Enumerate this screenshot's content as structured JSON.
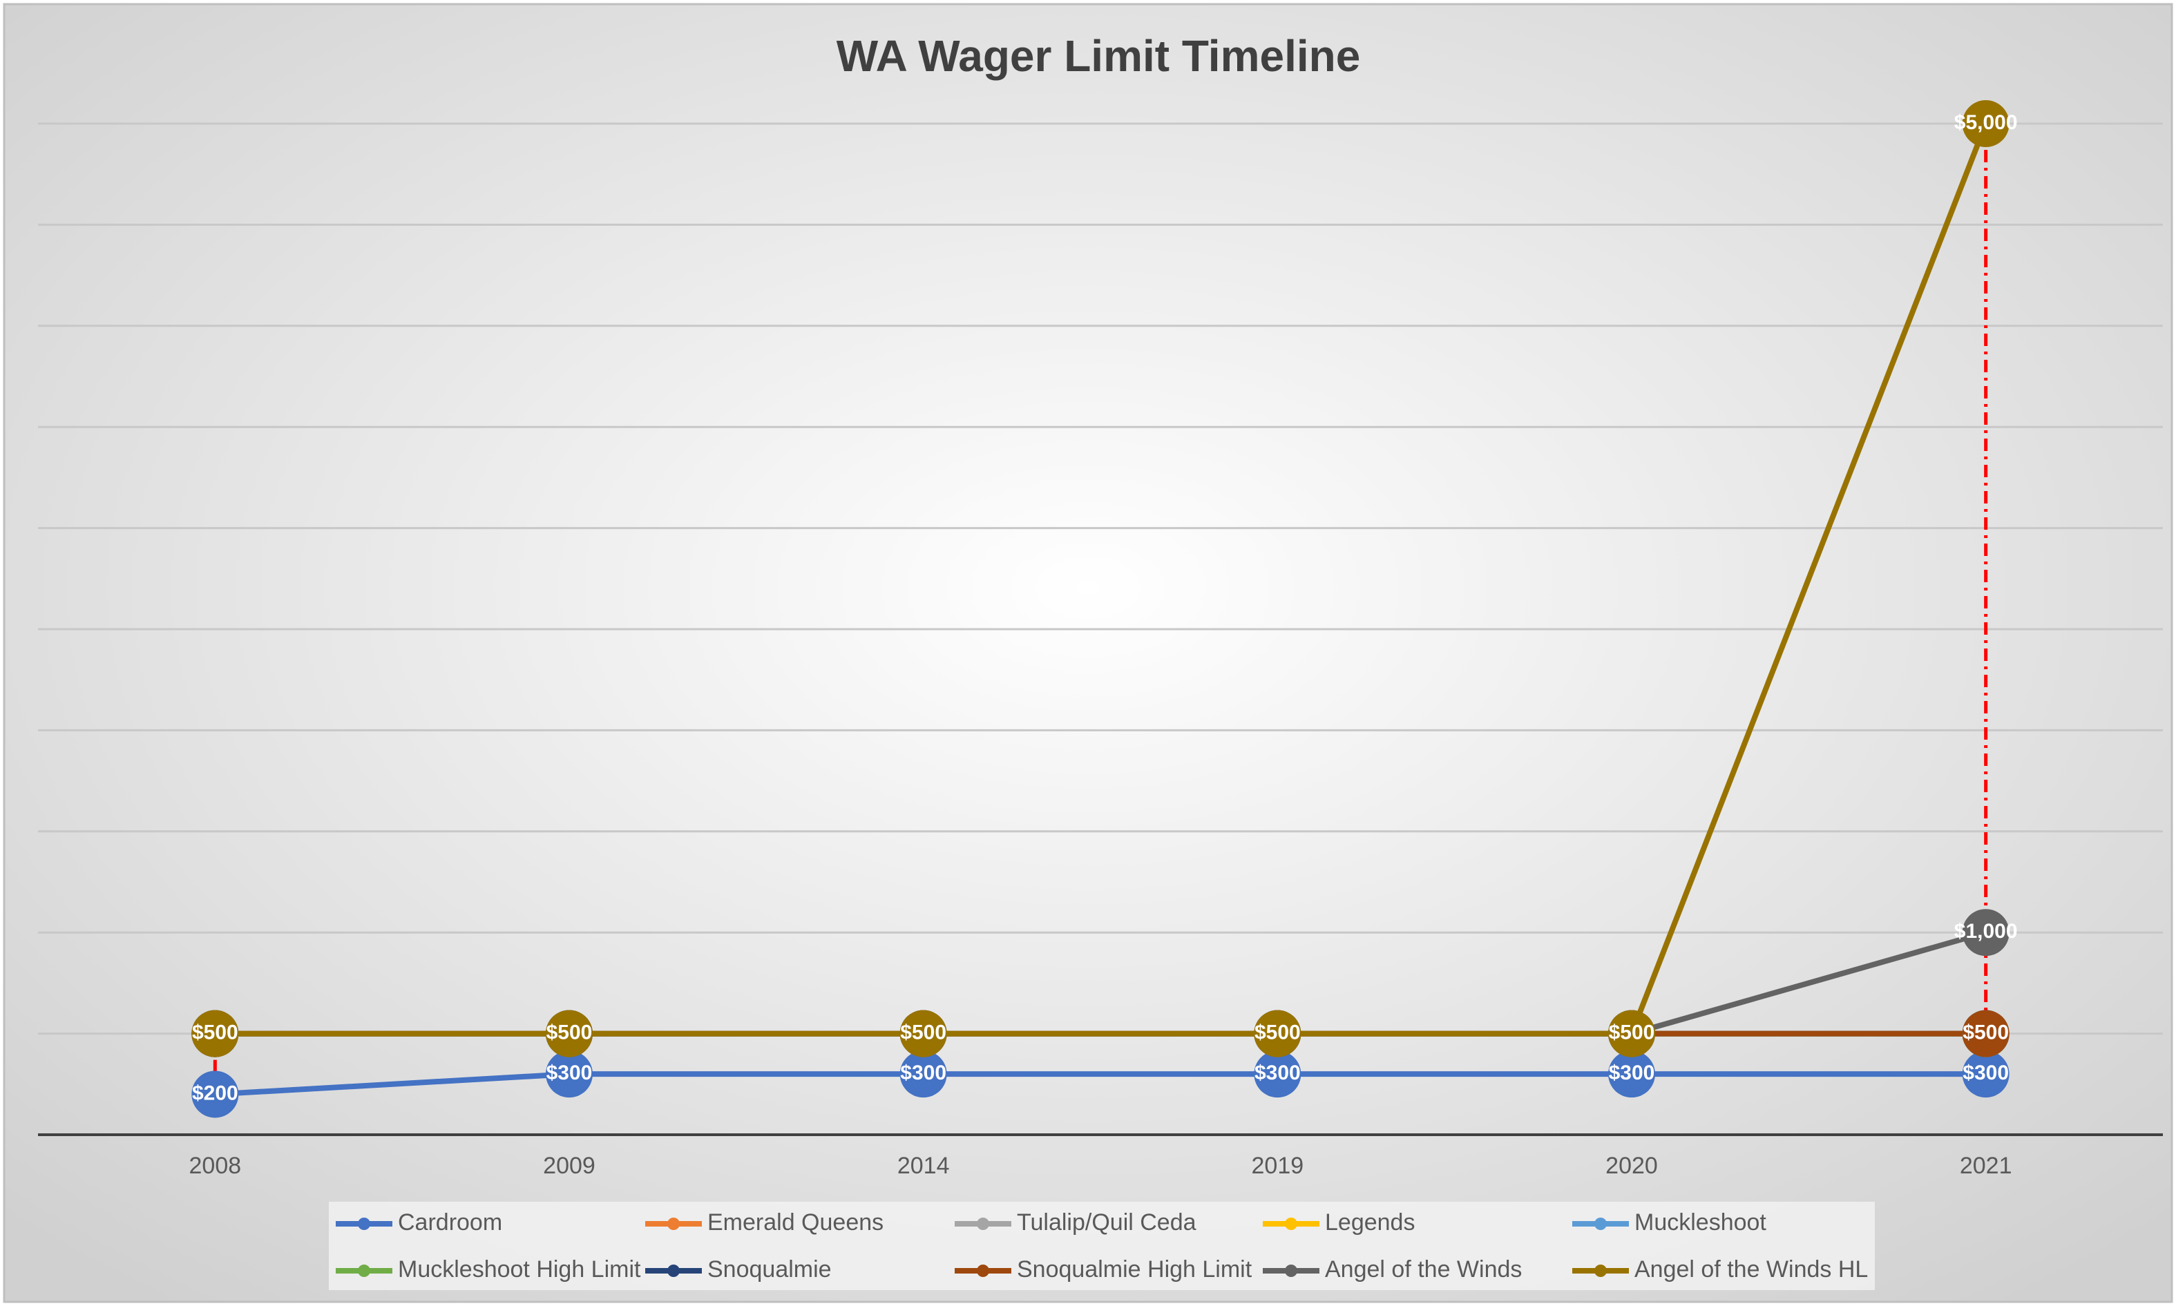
{
  "chart_data": {
    "type": "line",
    "title": "WA Wager Limit Timeline",
    "categories": [
      "2008",
      "2009",
      "2014",
      "2019",
      "2020",
      "2021"
    ],
    "ylim": [
      0,
      5000
    ],
    "yticks": [
      0,
      500,
      1000,
      1500,
      2000,
      2500,
      3000,
      3500,
      4000,
      4500,
      5000
    ],
    "grid": true,
    "legend": "bottom",
    "series": [
      {
        "name": "Cardroom",
        "color": "#4472c4",
        "values": [
          200,
          300,
          300,
          300,
          300,
          300
        ],
        "value_labels": [
          "$200",
          "$300",
          "$300",
          "$300",
          "$300",
          "$300"
        ]
      },
      {
        "name": "Emerald Queens",
        "color": "#ed7d31",
        "values": [
          500,
          500,
          500,
          500,
          500,
          500
        ]
      },
      {
        "name": "Tulalip/Quil Ceda",
        "color": "#a5a5a5",
        "values": [
          500,
          500,
          500,
          500,
          500,
          500
        ]
      },
      {
        "name": "Legends",
        "color": "#ffc000",
        "values": [
          500,
          500,
          500,
          500,
          500,
          500
        ],
        "value_labels": [
          null,
          null,
          null,
          null,
          null,
          "$500"
        ]
      },
      {
        "name": "Muckleshoot",
        "color": "#5b9bd5",
        "values": [
          500,
          500,
          500,
          500,
          500,
          500
        ]
      },
      {
        "name": "Muckleshoot High Limit",
        "color": "#70ad47",
        "values": [
          500,
          500,
          500,
          500,
          500,
          500
        ]
      },
      {
        "name": "Snoqualmie",
        "color": "#264478",
        "values": [
          500,
          500,
          500,
          500,
          500,
          500
        ]
      },
      {
        "name": "Snoqualmie High Limit",
        "color": "#9e480e",
        "values": [
          500,
          500,
          500,
          500,
          500,
          500
        ]
      },
      {
        "name": "Angel of the Winds",
        "color": "#636363",
        "values": [
          500,
          500,
          500,
          500,
          500,
          1000
        ],
        "value_labels": [
          null,
          null,
          null,
          null,
          null,
          "$1,000"
        ]
      },
      {
        "name": "Angel of the Winds HL",
        "color": "#997300",
        "values": [
          500,
          500,
          500,
          500,
          500,
          5000
        ],
        "value_labels": [
          "$500",
          "$500",
          "$500",
          "$500",
          "$500",
          "$5,000"
        ]
      }
    ]
  }
}
